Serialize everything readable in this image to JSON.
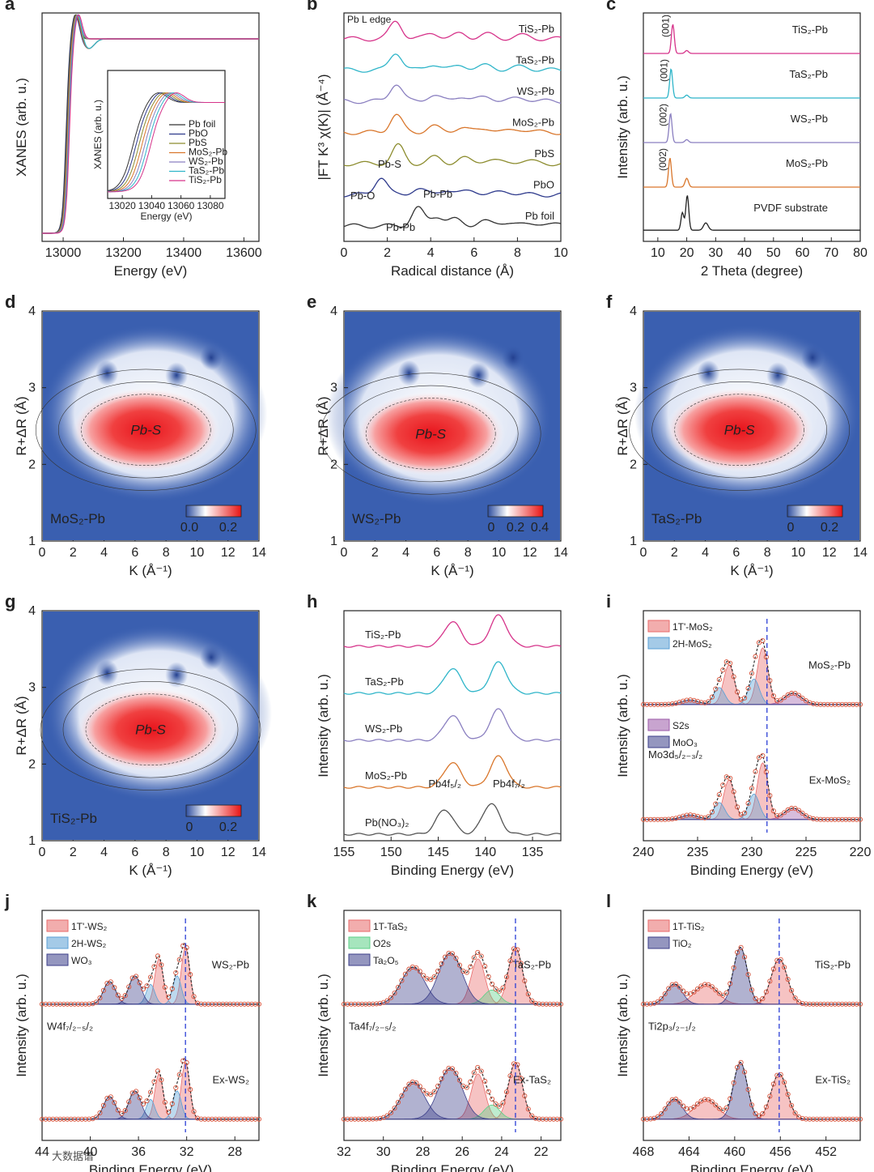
{
  "watermark": "大数据谱",
  "chart_data": [
    {
      "panel": "a",
      "type": "line",
      "xlabel": "Energy (eV)",
      "ylabel": "XANES (arb. u.)",
      "xlim": [
        12930,
        13650
      ],
      "xticks": [
        "13000",
        "13200",
        "13400",
        "13600"
      ],
      "xtick_values": [
        13000,
        13200,
        13400,
        13600
      ],
      "inset": {
        "xlabel": "Energy (eV)",
        "ylabel": "XANES (arb. u.)",
        "xlim": [
          13010,
          13090
        ],
        "xticks": [
          "13020",
          "13040",
          "13060",
          "13080"
        ],
        "xtick_values": [
          13020,
          13040,
          13060,
          13080
        ],
        "legend": [
          {
            "label": "Pb foil",
            "color": "#333333"
          },
          {
            "label": "PbO",
            "color": "#2e3a8c"
          },
          {
            "label": "PbS",
            "color": "#8c8c2e"
          },
          {
            "label": "MoS₂-Pb",
            "color": "#d9762b"
          },
          {
            "label": "WS₂-Pb",
            "color": "#8a7fc0"
          },
          {
            "label": "TaS₂-Pb",
            "color": "#2fb5c9"
          },
          {
            "label": "TiS₂-Pb",
            "color": "#d6338a"
          }
        ]
      }
    },
    {
      "panel": "b",
      "type": "line",
      "xlabel": "Radical distance (Å)",
      "ylabel": "|FT K³ χ(K)| (Å⁻⁴)",
      "xlim": [
        0,
        10
      ],
      "xticks": [
        "0",
        "2",
        "4",
        "6",
        "8",
        "10"
      ],
      "xtick_values": [
        0,
        2,
        4,
        6,
        8,
        10
      ],
      "edge_label": "Pb L edge",
      "series": [
        {
          "name": "TiS₂-Pb",
          "color": "#d6338a",
          "main_peak_r": 2.4
        },
        {
          "name": "TaS₂-Pb",
          "color": "#2fb5c9",
          "main_peak_r": 2.4
        },
        {
          "name": "WS₂-Pb",
          "color": "#8a7fc0",
          "main_peak_r": 2.4
        },
        {
          "name": "MoS₂-Pb",
          "color": "#d9762b",
          "main_peak_r": 2.4
        },
        {
          "name": "PbS",
          "color": "#8c8c2e",
          "main_peak_r": 2.5
        },
        {
          "name": "PbO",
          "color": "#2e3a8c",
          "main_peak_r": 1.7
        },
        {
          "name": "Pb foil",
          "color": "#333333",
          "main_peak_r": 3.4
        }
      ],
      "annotations": [
        "Pb-S",
        "Pb-O",
        "Pb-Pb",
        "Pb-Pb"
      ]
    },
    {
      "panel": "c",
      "type": "line",
      "xlabel": "2 Theta (degree)",
      "ylabel": "Intensity (arb. u.)",
      "xlim": [
        5,
        80
      ],
      "xticks": [
        "10",
        "20",
        "30",
        "40",
        "50",
        "60",
        "70",
        "80"
      ],
      "xtick_values": [
        10,
        20,
        30,
        40,
        50,
        60,
        70,
        80
      ],
      "series": [
        {
          "name": "TiS₂-Pb",
          "color": "#d6338a",
          "peak_2theta": 15.2,
          "peak_label": "(001)"
        },
        {
          "name": "TaS₂-Pb",
          "color": "#2fb5c9",
          "peak_2theta": 14.6,
          "peak_label": "(001)"
        },
        {
          "name": "WS₂-Pb",
          "color": "#8a7fc0",
          "peak_2theta": 14.4,
          "peak_label": "(002)"
        },
        {
          "name": "MoS₂-Pb",
          "color": "#d9762b",
          "peak_2theta": 14.2,
          "peak_label": "(002)"
        },
        {
          "name": "PVDF substrate",
          "color": "#222222",
          "peak_2theta": 20.2,
          "peak_label": ""
        }
      ]
    },
    {
      "panel": "d",
      "type": "heatmap",
      "label": "MoS₂-Pb",
      "peak_label": "Pb-S",
      "xlabel": "K (Å⁻¹)",
      "ylabel": "R+ΔR (Å)",
      "xlim": [
        0,
        14
      ],
      "ylim": [
        1,
        4
      ],
      "xticks": [
        "0",
        "2",
        "4",
        "6",
        "8",
        "10",
        "12",
        "14"
      ],
      "yticks": [
        "1",
        "2",
        "3",
        "4"
      ],
      "peak_k": 6.7,
      "peak_r": 2.45,
      "colorbar_ticks": [
        "0.0",
        "0.2"
      ]
    },
    {
      "panel": "e",
      "type": "heatmap",
      "label": "WS₂-Pb",
      "peak_label": "Pb-S",
      "xlabel": "K (Å⁻¹)",
      "ylabel": "R+ΔR (Å)",
      "xlim": [
        0,
        14
      ],
      "ylim": [
        1,
        4
      ],
      "xticks": [
        "0",
        "2",
        "4",
        "6",
        "8",
        "10",
        "12",
        "14"
      ],
      "yticks": [
        "1",
        "2",
        "3",
        "4"
      ],
      "peak_k": 5.6,
      "peak_r": 2.4,
      "colorbar_ticks": [
        "0",
        "0.2",
        "0.4"
      ]
    },
    {
      "panel": "f",
      "type": "heatmap",
      "label": "TaS₂-Pb",
      "peak_label": "Pb-S",
      "xlabel": "K (Å⁻¹)",
      "ylabel": "R+ΔR (Å)",
      "xlim": [
        0,
        14
      ],
      "ylim": [
        1,
        4
      ],
      "xticks": [
        "0",
        "2",
        "4",
        "6",
        "8",
        "10",
        "12",
        "14"
      ],
      "yticks": [
        "1",
        "2",
        "3",
        "4"
      ],
      "peak_k": 6.2,
      "peak_r": 2.45,
      "colorbar_ticks": [
        "0",
        "0.2"
      ]
    },
    {
      "panel": "g",
      "type": "heatmap",
      "label": "TiS₂-Pb",
      "peak_label": "Pb-S",
      "xlabel": "K (Å⁻¹)",
      "ylabel": "R+ΔR (Å)",
      "xlim": [
        0,
        14
      ],
      "ylim": [
        1,
        4
      ],
      "xticks": [
        "0",
        "2",
        "4",
        "6",
        "8",
        "10",
        "12",
        "14"
      ],
      "yticks": [
        "1",
        "2",
        "3",
        "4"
      ],
      "peak_k": 7.0,
      "peak_r": 2.45,
      "colorbar_ticks": [
        "0",
        "0.2"
      ]
    },
    {
      "panel": "h",
      "type": "line",
      "xlabel": "Binding Energy (eV)",
      "ylabel": "Intensity (arb. u.)",
      "xlim": [
        155,
        132
      ],
      "xticks": [
        "155",
        "150",
        "145",
        "140",
        "135"
      ],
      "xtick_values": [
        155,
        150,
        145,
        140,
        135
      ],
      "series": [
        {
          "name": "TiS₂-Pb",
          "color": "#d6338a",
          "peaks": [
            143.5,
            138.6
          ]
        },
        {
          "name": "TaS₂-Pb",
          "color": "#2fb5c9",
          "peaks": [
            143.5,
            138.6
          ]
        },
        {
          "name": "WS₂-Pb",
          "color": "#8a7fc0",
          "peaks": [
            143.5,
            138.6
          ]
        },
        {
          "name": "MoS₂-Pb",
          "color": "#d9762b",
          "peaks": [
            143.5,
            138.6
          ]
        },
        {
          "name": "Pb(NO₃)₂",
          "color": "#555555",
          "peaks": [
            144.3,
            139.4
          ]
        }
      ],
      "peak_labels": [
        "Pb4f₅/₂",
        "Pb4f₇/₂"
      ]
    },
    {
      "panel": "i",
      "type": "line",
      "xlabel": "Binding Energy (eV)",
      "ylabel": "Intensity (arb. u.)",
      "xlim": [
        240,
        220
      ],
      "xticks": [
        "240",
        "235",
        "230",
        "225",
        "220"
      ],
      "xtick_values": [
        240,
        235,
        230,
        225,
        220
      ],
      "series": [
        {
          "name": "MoS₂-Pb"
        },
        {
          "name": "Ex-MoS₂"
        }
      ],
      "legend": [
        "1T'-MoS₂",
        "2H-MoS₂",
        "S2s",
        "MoO₃"
      ],
      "region_label": "Mo3d₅/₂₋₃/₂",
      "dashed_line_x": 228.6
    },
    {
      "panel": "j",
      "type": "line",
      "xlabel": "Binding Energy (eV)",
      "ylabel": "Intensity (arb. u.)",
      "xlim": [
        44,
        26
      ],
      "xticks": [
        "44",
        "40",
        "36",
        "32",
        "28"
      ],
      "xtick_values": [
        44,
        40,
        36,
        32,
        28
      ],
      "series": [
        {
          "name": "WS₂-Pb"
        },
        {
          "name": "Ex-WS₂"
        }
      ],
      "legend": [
        "1T'-WS₂",
        "2H-WS₂",
        "WO₃"
      ],
      "region_label": "W4f₇/₂₋₅/₂",
      "dashed_line_x": 32.1
    },
    {
      "panel": "k",
      "type": "line",
      "xlabel": "Binding Energy (eV)",
      "ylabel": "Intensity (arb. u.)",
      "xlim": [
        32,
        21
      ],
      "xticks": [
        "32",
        "30",
        "28",
        "26",
        "24",
        "22"
      ],
      "xtick_values": [
        32,
        30,
        28,
        26,
        24,
        22
      ],
      "series": [
        {
          "name": "TaS₂-Pb"
        },
        {
          "name": "Ex-TaS₂"
        }
      ],
      "legend": [
        "1T-TaS₂",
        "O2s",
        "Ta₂O₅"
      ],
      "region_label": "Ta4f₇/₂₋₅/₂",
      "dashed_line_x": 23.3
    },
    {
      "panel": "l",
      "type": "line",
      "xlabel": "Binding Energy (eV)",
      "ylabel": "Intensity (arb. u.)",
      "xlim": [
        468,
        449
      ],
      "xticks": [
        "468",
        "464",
        "460",
        "456",
        "452"
      ],
      "xtick_values": [
        468,
        464,
        460,
        456,
        452
      ],
      "series": [
        {
          "name": "TiS₂-Pb"
        },
        {
          "name": "Ex-TiS₂"
        }
      ],
      "legend": [
        "1T-TiS₂",
        "TiO₂"
      ],
      "region_label": "Ti2p₃/₂₋₁/₂",
      "dashed_line_x": 456.1
    }
  ]
}
